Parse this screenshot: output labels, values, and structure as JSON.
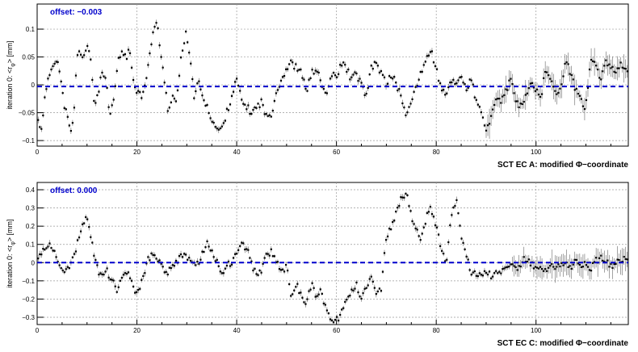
{
  "chart_data": [
    {
      "type": "scatter",
      "ylabel_prefix": "iteration 0: <r",
      "ylabel_sub": "φ",
      "ylabel_suffix": "> [mm]",
      "xlabel": "SCT EC A: modified Φ−coordinate",
      "offset_label": "offset:",
      "offset_value": "−0.003",
      "offset": -0.003,
      "xlim": [
        0,
        118.5
      ],
      "ylim": [
        -0.11,
        0.145
      ],
      "x_ticks": [
        0,
        20,
        40,
        60,
        80,
        100
      ],
      "y_ticks": [
        -0.1,
        -0.05,
        0,
        0.05,
        0.1
      ],
      "y_tick_labels": [
        "−0.1",
        "−0.05",
        "0",
        "0.05",
        "0.1"
      ],
      "grid": true,
      "offset_line_color": "#0000cc",
      "marker_color": "#000000",
      "anchors_x": [
        0,
        0.8,
        1.6,
        2.5,
        3.3,
        4.0,
        4.7,
        5.3,
        6.1,
        6.7,
        7.3,
        8.0,
        8.6,
        9.3,
        10.0,
        10.8,
        11.5,
        12.3,
        13.0,
        13.8,
        14.5,
        15.3,
        16.2,
        17.0,
        17.8,
        18.5,
        19.3,
        20.0,
        21.0,
        22.0,
        23.0,
        24.0,
        24.8,
        25.5,
        26.3,
        27.0,
        28.0,
        29.0,
        29.8,
        30.6,
        31.4,
        32.2,
        33.0,
        34.0,
        35.0,
        36.0,
        37.0,
        38.0,
        39.0,
        40.0,
        41.0,
        42.0,
        43.0,
        44.0,
        45.0,
        46.0,
        47.0,
        48.0,
        49.0,
        50.0,
        51.0,
        52.0,
        53.0,
        54.0,
        55.0,
        56.0,
        57.0,
        58.0,
        59.0,
        60.0,
        61.0,
        62.0,
        63.0,
        64.0,
        65.0,
        66.0,
        67.0,
        68.0,
        69.0,
        70.0,
        71.0,
        72.0,
        73.0,
        74.0,
        75.0,
        76.0,
        77.0,
        78.0,
        79.0,
        80.0,
        81.0,
        82.0,
        83.0,
        84.0,
        85.0,
        86.0,
        87.0,
        88.0,
        89.0,
        90.0,
        91.0,
        92.0,
        93.0,
        94.0,
        95.0,
        96.0,
        97.0,
        98.0,
        99.0,
        100.0,
        101.0,
        102.0,
        103.0,
        104.0,
        105.0,
        106.0,
        107.0,
        108.0,
        109.0,
        110.0,
        111.0,
        112.0,
        113.0,
        114.0,
        115.0,
        116.0,
        117.0,
        118.0
      ],
      "anchors_y": [
        -0.06,
        -0.08,
        -0.02,
        0.02,
        0.04,
        0.05,
        0.01,
        -0.03,
        -0.06,
        -0.09,
        -0.06,
        0.05,
        0.06,
        0.05,
        0.07,
        0.04,
        -0.04,
        -0.01,
        0.02,
        0.01,
        -0.06,
        -0.03,
        0.04,
        0.06,
        0.05,
        0.06,
        0.01,
        -0.01,
        -0.02,
        0.02,
        0.08,
        0.12,
        0.05,
        0.01,
        -0.05,
        -0.02,
        -0.03,
        0.06,
        0.09,
        0.05,
        -0.02,
        0.01,
        -0.02,
        -0.04,
        -0.06,
        -0.08,
        -0.08,
        -0.05,
        -0.02,
        0.01,
        -0.03,
        -0.04,
        -0.05,
        -0.04,
        -0.03,
        -0.06,
        -0.05,
        -0.01,
        0.01,
        0.03,
        0.04,
        0.03,
        0.02,
        -0.01,
        0.02,
        0.03,
        0.0,
        -0.02,
        0.02,
        0.01,
        0.04,
        0.03,
        0.01,
        0.02,
        0.0,
        -0.02,
        0.03,
        0.04,
        0.02,
        0.0,
        0.02,
        0.0,
        -0.02,
        -0.06,
        -0.03,
        0.0,
        0.02,
        0.05,
        0.06,
        0.03,
        -0.01,
        -0.02,
        0.01,
        0.0,
        0.02,
        -0.01,
        0.01,
        -0.03,
        -0.05,
        -0.08,
        -0.06,
        -0.02,
        -0.03,
        -0.01,
        0.01,
        -0.03,
        -0.04,
        -0.02,
        0.01,
        -0.01,
        -0.02,
        0.03,
        0.01,
        -0.02,
        0.0,
        0.04,
        0.02,
        -0.01,
        -0.03,
        -0.04,
        0.05,
        0.03,
        0.01,
        0.04,
        0.03,
        0.02,
        0.04,
        0.03
      ],
      "error_bars_grow_from_x": 90
    },
    {
      "type": "scatter",
      "ylabel_prefix": "iteration 0: <r",
      "ylabel_sub": "φ",
      "ylabel_suffix": "> [mm]",
      "xlabel": "SCT EC C: modified Φ−coordinate",
      "offset_label": "offset:",
      "offset_value": "0.000",
      "offset": 0.0,
      "xlim": [
        0,
        118.5
      ],
      "ylim": [
        -0.34,
        0.44
      ],
      "x_ticks": [
        0,
        20,
        40,
        60,
        80,
        100
      ],
      "y_ticks": [
        -0.3,
        -0.2,
        -0.1,
        0,
        0.1,
        0.2,
        0.3,
        0.4
      ],
      "y_tick_labels": [
        "−0.3",
        "−0.2",
        "−0.1",
        "0",
        "0.1",
        "0.2",
        "0.3",
        "0.4"
      ],
      "grid": true,
      "offset_line_color": "#0000cc",
      "marker_color": "#000000",
      "anchors_x": [
        0,
        1.0,
        2.0,
        3.0,
        4.0,
        5.0,
        6.0,
        7.0,
        8.0,
        9.0,
        10.0,
        11.0,
        12.0,
        13.0,
        14.0,
        15.0,
        16.0,
        17.0,
        18.0,
        19.0,
        20.0,
        21.0,
        22.0,
        23.0,
        24.0,
        25.0,
        26.0,
        27.0,
        28.0,
        29.0,
        30.0,
        31.0,
        32.0,
        33.0,
        34.0,
        35.0,
        36.0,
        37.0,
        38.0,
        39.0,
        40.0,
        41.0,
        42.0,
        43.0,
        44.0,
        45.0,
        46.0,
        47.0,
        48.0,
        49.0,
        50.0,
        51.0,
        52.0,
        53.0,
        54.0,
        55.0,
        56.0,
        57.0,
        58.0,
        59.0,
        60.0,
        61.0,
        62.0,
        63.0,
        64.0,
        65.0,
        66.0,
        67.0,
        68.0,
        69.0,
        70.0,
        71.0,
        72.0,
        73.0,
        74.0,
        75.0,
        76.0,
        77.0,
        78.0,
        79.0,
        80.0,
        81.0,
        82.0,
        83.0,
        84.0,
        85.0,
        86.0,
        87.0,
        88.0,
        89.0,
        90.0,
        91.0,
        92.0,
        93.0,
        94.0,
        95.0,
        96.0,
        97.0,
        98.0,
        99.0,
        100.0,
        101.0,
        102.0,
        103.0,
        104.0,
        105.0,
        106.0,
        107.0,
        108.0,
        109.0,
        110.0,
        111.0,
        112.0,
        113.0,
        114.0,
        115.0,
        116.0,
        117.0,
        118.0
      ],
      "anchors_y": [
        0.02,
        0.06,
        0.1,
        0.08,
        0.02,
        -0.05,
        -0.02,
        0.0,
        0.1,
        0.22,
        0.25,
        0.1,
        -0.03,
        -0.08,
        -0.05,
        -0.1,
        -0.15,
        -0.1,
        -0.05,
        -0.1,
        -0.18,
        -0.1,
        0.0,
        0.05,
        0.03,
        -0.02,
        -0.05,
        -0.03,
        0.01,
        0.03,
        0.03,
        0.0,
        -0.02,
        0.05,
        0.1,
        0.08,
        0.0,
        -0.05,
        -0.02,
        0.0,
        0.05,
        0.1,
        0.08,
        0.0,
        -0.08,
        -0.05,
        0.05,
        0.06,
        0.0,
        -0.05,
        -0.02,
        -0.2,
        -0.12,
        -0.18,
        -0.22,
        -0.12,
        -0.2,
        -0.15,
        -0.28,
        -0.3,
        -0.32,
        -0.28,
        -0.2,
        -0.15,
        -0.12,
        -0.2,
        -0.12,
        -0.08,
        -0.18,
        -0.15,
        0.15,
        0.18,
        0.28,
        0.35,
        0.38,
        0.25,
        0.18,
        0.12,
        0.25,
        0.3,
        0.2,
        0.08,
        0.0,
        0.25,
        0.35,
        0.15,
        0.05,
        -0.05,
        -0.06,
        -0.08,
        -0.05,
        -0.07,
        -0.04,
        -0.06,
        -0.04,
        -0.02,
        -0.03,
        0.0,
        0.02,
        -0.01,
        -0.03,
        -0.02,
        -0.06,
        -0.01,
        -0.03,
        -0.02,
        0.0,
        -0.02,
        0.02,
        -0.01,
        0.0,
        -0.03,
        0.01,
        0.02,
        0.0,
        -0.02,
        0.01,
        0.0,
        0.02
      ],
      "error_bars_grow_from_x": 95
    }
  ]
}
